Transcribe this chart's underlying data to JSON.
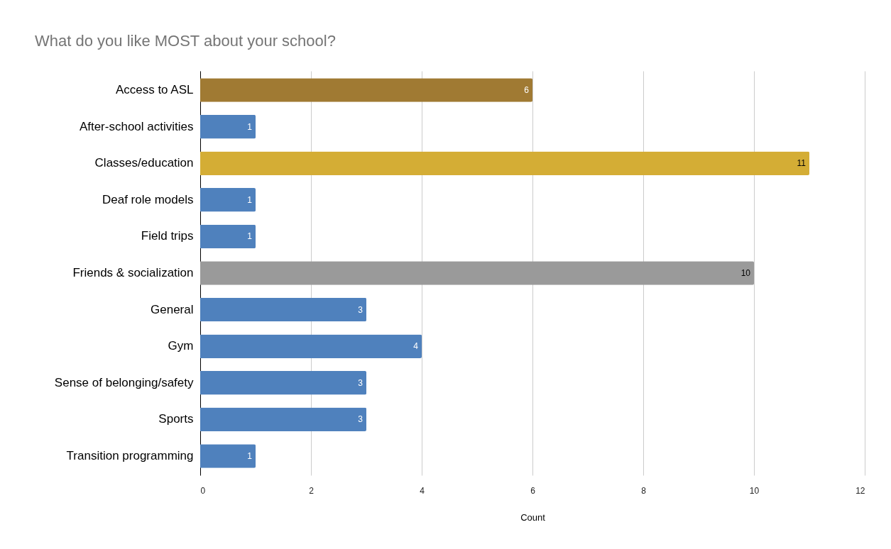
{
  "chart_data": {
    "type": "bar",
    "orientation": "horizontal",
    "title": "What do you like MOST about your school?",
    "xlabel": "Count",
    "categories": [
      "Access to ASL",
      "After-school activities",
      "Classes/education",
      "Deaf role models",
      "Field trips",
      "Friends & socialization",
      "General",
      "Gym",
      "Sense of belonging/safety",
      "Sports",
      "Transition programming"
    ],
    "values": [
      6,
      1,
      11,
      1,
      1,
      10,
      3,
      4,
      3,
      3,
      1
    ],
    "colors": [
      "#a07a33",
      "#4f81bd",
      "#d4ad35",
      "#4f81bd",
      "#4f81bd",
      "#9a9a9a",
      "#4f81bd",
      "#4f81bd",
      "#4f81bd",
      "#4f81bd",
      "#4f81bd"
    ],
    "xlim": [
      0,
      12
    ],
    "xticks": [
      0,
      2,
      4,
      6,
      8,
      10,
      12
    ],
    "grid": "x",
    "data_labels": true
  }
}
